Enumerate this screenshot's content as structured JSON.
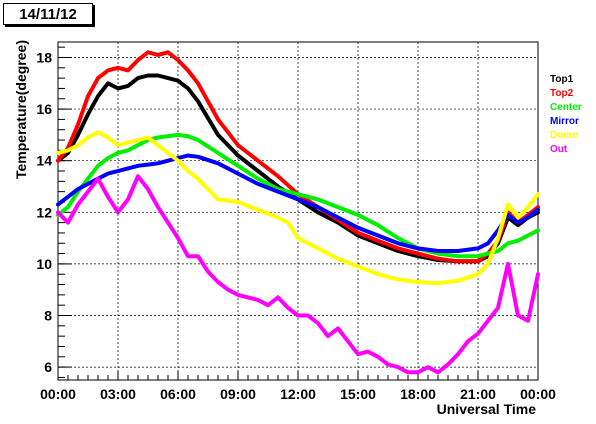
{
  "title": "14/11/12",
  "chart_data": {
    "type": "line",
    "xlabel": "Universal Time",
    "ylabel": "Temperature(degree)",
    "xlim": [
      0,
      24
    ],
    "ylim": [
      5.5,
      18.6
    ],
    "x_ticks": [
      0,
      3,
      6,
      9,
      12,
      15,
      18,
      21,
      24
    ],
    "x_tick_labels": [
      "00:00",
      "03:00",
      "06:00",
      "09:00",
      "12:00",
      "15:00",
      "18:00",
      "21:00",
      "00:00"
    ],
    "y_ticks": [
      6,
      8,
      10,
      12,
      14,
      16,
      18
    ],
    "y_tick_labels": [
      "6",
      "8",
      "10",
      "12",
      "14",
      "16",
      "18"
    ],
    "grid": true,
    "legend_position": "right",
    "series": [
      {
        "name": "Top1",
        "color": "#000000",
        "x": [
          0,
          0.5,
          1,
          1.5,
          2,
          2.5,
          3,
          3.5,
          4,
          4.5,
          5,
          5.5,
          6,
          6.5,
          7,
          8,
          9,
          10,
          11,
          12,
          13,
          14,
          15,
          16,
          17,
          18,
          19,
          20,
          21,
          21.5,
          22,
          22.5,
          23,
          23.5,
          24
        ],
        "y": [
          14.0,
          14.3,
          15.0,
          15.8,
          16.5,
          17.0,
          16.8,
          16.9,
          17.2,
          17.3,
          17.3,
          17.2,
          17.1,
          16.8,
          16.3,
          15.0,
          14.2,
          13.6,
          13.0,
          12.5,
          12.0,
          11.6,
          11.1,
          10.8,
          10.5,
          10.3,
          10.15,
          10.1,
          10.1,
          10.3,
          10.8,
          11.8,
          11.5,
          11.8,
          12.0
        ]
      },
      {
        "name": "Top2",
        "color": "#ff0000",
        "x": [
          0,
          0.5,
          1,
          1.5,
          2,
          2.5,
          3,
          3.5,
          4,
          4.5,
          5,
          5.5,
          6,
          6.5,
          7,
          8,
          9,
          10,
          11,
          12,
          13,
          14,
          15,
          16,
          17,
          18,
          19,
          20,
          21,
          21.5,
          22,
          22.5,
          23,
          23.5,
          24
        ],
        "y": [
          14.0,
          14.5,
          15.4,
          16.5,
          17.2,
          17.5,
          17.6,
          17.5,
          17.9,
          18.2,
          18.1,
          18.2,
          17.9,
          17.5,
          17.0,
          15.6,
          14.6,
          14.0,
          13.4,
          12.7,
          12.2,
          11.7,
          11.2,
          10.9,
          10.6,
          10.4,
          10.2,
          10.1,
          10.1,
          10.4,
          10.9,
          12.0,
          11.6,
          11.9,
          12.2
        ]
      },
      {
        "name": "Center",
        "color": "#00ee00",
        "x": [
          0,
          0.5,
          1,
          1.5,
          2,
          2.5,
          3,
          3.5,
          4,
          4.5,
          5,
          5.5,
          6,
          6.5,
          7,
          8,
          9,
          10,
          11,
          12,
          13,
          14,
          15,
          16,
          17,
          18,
          19,
          20,
          21,
          21.5,
          22,
          22.5,
          23,
          23.5,
          24
        ],
        "y": [
          11.9,
          12.2,
          12.8,
          13.3,
          13.8,
          14.1,
          14.3,
          14.4,
          14.6,
          14.8,
          14.9,
          14.95,
          15.0,
          14.95,
          14.8,
          14.3,
          13.8,
          13.3,
          12.9,
          12.7,
          12.5,
          12.2,
          11.9,
          11.5,
          11.0,
          10.6,
          10.4,
          10.3,
          10.3,
          10.4,
          10.5,
          10.8,
          10.9,
          11.1,
          11.3
        ]
      },
      {
        "name": "Mirror",
        "color": "#0000ff",
        "x": [
          0,
          0.5,
          1,
          1.5,
          2,
          2.5,
          3,
          3.5,
          4,
          4.5,
          5,
          5.5,
          6,
          6.5,
          7,
          8,
          9,
          10,
          11,
          12,
          13,
          14,
          15,
          16,
          17,
          18,
          19,
          20,
          21,
          21.5,
          22,
          22.5,
          23,
          23.5,
          24
        ],
        "y": [
          12.3,
          12.6,
          12.9,
          13.1,
          13.3,
          13.5,
          13.6,
          13.7,
          13.8,
          13.85,
          13.9,
          14.0,
          14.1,
          14.2,
          14.15,
          13.9,
          13.5,
          13.1,
          12.8,
          12.5,
          12.2,
          11.8,
          11.4,
          11.1,
          10.8,
          10.6,
          10.5,
          10.5,
          10.6,
          10.8,
          11.3,
          11.9,
          11.6,
          11.8,
          12.1
        ]
      },
      {
        "name": "Dome",
        "color": "#ffff00",
        "x": [
          0,
          0.5,
          1,
          1.5,
          2,
          2.5,
          3,
          3.5,
          4,
          4.5,
          5,
          5.5,
          6,
          6.5,
          7,
          8,
          9,
          10,
          11,
          11.5,
          12,
          13,
          14,
          15,
          16,
          17,
          18,
          19,
          20,
          21,
          21.5,
          22,
          22.5,
          23,
          23.5,
          24
        ],
        "y": [
          14.3,
          14.4,
          14.6,
          14.9,
          15.1,
          14.9,
          14.6,
          14.7,
          14.8,
          14.9,
          14.6,
          14.3,
          14.0,
          13.6,
          13.3,
          12.5,
          12.4,
          12.1,
          11.8,
          11.6,
          11.0,
          10.6,
          10.2,
          9.9,
          9.6,
          9.4,
          9.3,
          9.25,
          9.35,
          9.6,
          10.0,
          11.0,
          12.3,
          11.8,
          12.2,
          12.7
        ]
      },
      {
        "name": "Out",
        "color": "#ff00ff",
        "x": [
          0,
          0.5,
          1,
          1.5,
          2,
          2.5,
          3,
          3.5,
          4,
          4.5,
          5,
          5.5,
          6,
          6.5,
          7,
          7.5,
          8,
          8.5,
          9,
          9.5,
          10,
          10.5,
          11,
          11.5,
          12,
          12.5,
          13,
          13.5,
          14,
          14.5,
          15,
          15.5,
          16,
          16.5,
          17,
          17.5,
          18,
          18.5,
          19,
          19.5,
          20,
          20.5,
          21,
          21.5,
          22,
          22.5,
          23,
          23.5,
          24
        ],
        "y": [
          12.0,
          11.6,
          12.3,
          12.8,
          13.3,
          12.6,
          12.0,
          12.5,
          13.4,
          12.9,
          12.2,
          11.6,
          11.0,
          10.3,
          10.3,
          9.7,
          9.3,
          9.0,
          8.8,
          8.7,
          8.6,
          8.4,
          8.7,
          8.3,
          8.0,
          8.0,
          7.7,
          7.2,
          7.5,
          7.0,
          6.5,
          6.6,
          6.4,
          6.1,
          6.0,
          5.8,
          5.8,
          6.0,
          5.8,
          6.1,
          6.5,
          7.0,
          7.3,
          7.8,
          8.3,
          10.0,
          8.0,
          7.8,
          9.6
        ]
      }
    ]
  }
}
